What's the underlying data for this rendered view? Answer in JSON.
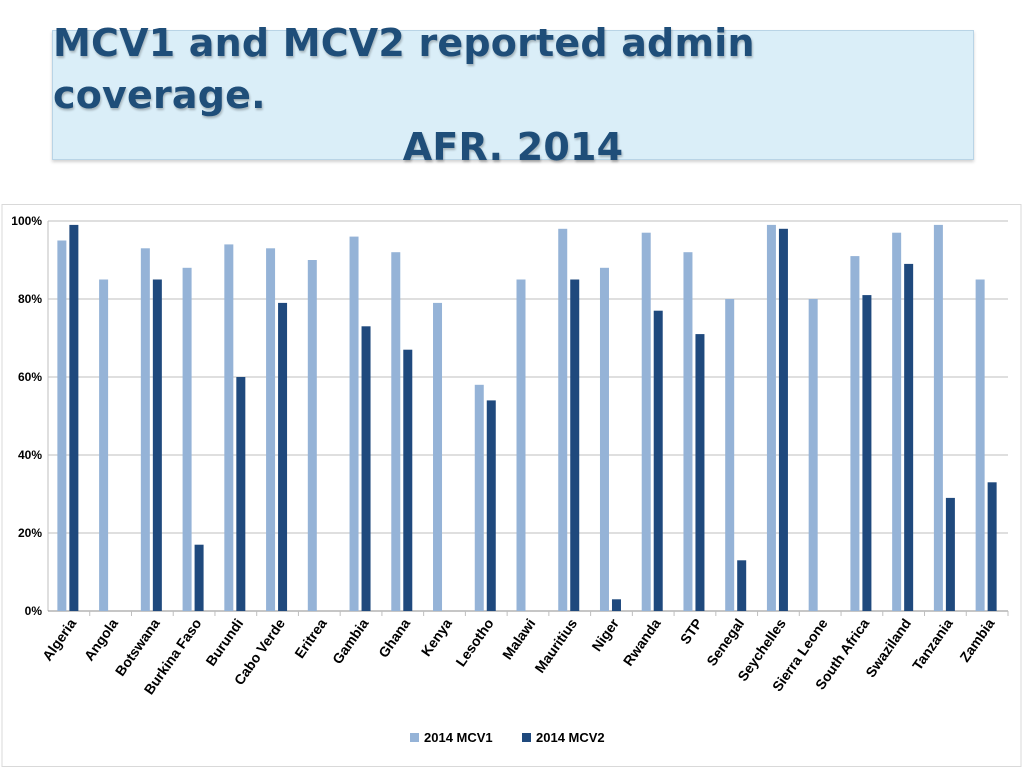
{
  "title": {
    "line1": "MCV1 and MCV2 reported admin coverage.",
    "line2": "AFR. 2014"
  },
  "colors": {
    "mcv1": "#95b3d7",
    "mcv2": "#1f497d",
    "grid": "#bfbfbf",
    "axis_text": "#000000"
  },
  "chart_data": {
    "type": "bar",
    "title": "MCV1 and MCV2 reported admin coverage. AFR. 2014",
    "xlabel": "",
    "ylabel": "",
    "ylim": [
      0,
      100
    ],
    "yticks": [
      0,
      20,
      40,
      60,
      80,
      100
    ],
    "ytick_labels": [
      "0%",
      "20%",
      "40%",
      "60%",
      "80%",
      "100%"
    ],
    "grid": true,
    "legend_position": "bottom",
    "categories": [
      "Algeria",
      "Angola",
      "Botswana",
      "Burkina Faso",
      "Burundi",
      "Cabo Verde",
      "Eritrea",
      "Gambia",
      "Ghana",
      "Kenya",
      "Lesotho",
      "Malawi",
      "Mauritius",
      "Niger",
      "Rwanda",
      "STP",
      "Senegal",
      "Seychelles",
      "Sierra Leone",
      "South Africa",
      "Swaziland",
      "Tanzania",
      "Zambia"
    ],
    "series": [
      {
        "name": "2014 MCV1",
        "values": [
          95,
          85,
          93,
          88,
          94,
          93,
          90,
          96,
          92,
          79,
          58,
          85,
          98,
          88,
          97,
          92,
          80,
          99,
          80,
          91,
          97,
          99,
          85
        ]
      },
      {
        "name": "2014 MCV2",
        "values": [
          99,
          null,
          85,
          17,
          60,
          79,
          null,
          73,
          67,
          null,
          54,
          null,
          85,
          3,
          77,
          71,
          13,
          98,
          null,
          81,
          89,
          29,
          33
        ]
      }
    ]
  }
}
